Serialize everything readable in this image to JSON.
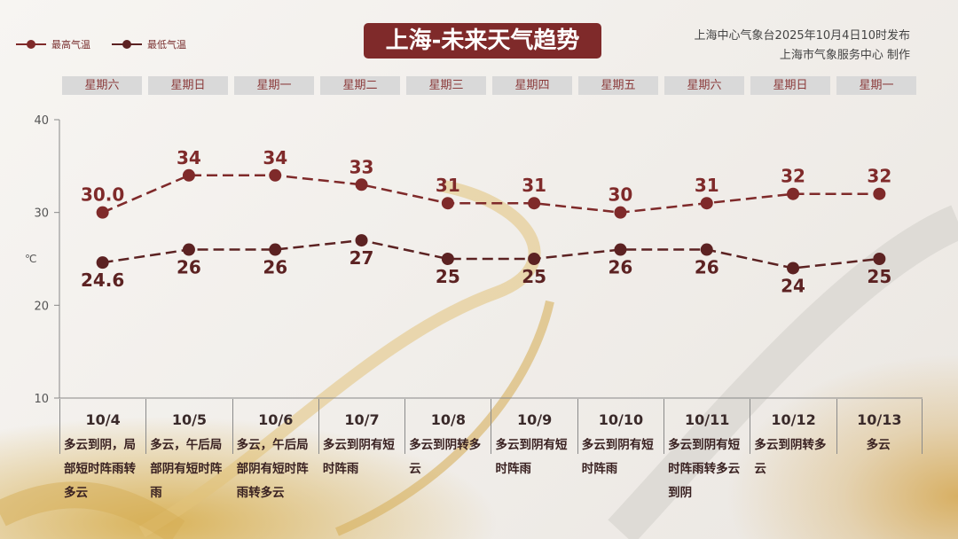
{
  "header": {
    "title": "上海-未来天气趋势",
    "publish_line1": "上海中心气象台2025年10月4日10时发布",
    "publish_line2": "上海市气象服务中心 制作"
  },
  "legend": [
    {
      "label": "最高气温",
      "color": "#7f2a2a"
    },
    {
      "label": "最低气温",
      "color": "#5c2222"
    }
  ],
  "weekdays": [
    "星期六",
    "星期日",
    "星期一",
    "星期二",
    "星期三",
    "星期四",
    "星期五",
    "星期六",
    "星期日",
    "星期一"
  ],
  "chart_data": {
    "type": "line",
    "categories": [
      "10/4",
      "10/5",
      "10/6",
      "10/7",
      "10/8",
      "10/9",
      "10/10",
      "10/11",
      "10/12",
      "10/13"
    ],
    "ylabel": "℃",
    "ylim": [
      10,
      40
    ],
    "yticks": [
      10,
      20,
      30,
      40
    ],
    "grid": false,
    "series": [
      {
        "name": "最高气温",
        "color": "#7f2a2a",
        "values": [
          30.0,
          34,
          34,
          33,
          31,
          31,
          30,
          31,
          32,
          32
        ],
        "labels": [
          "30.0",
          "34",
          "34",
          "33",
          "31",
          "31",
          "30",
          "31",
          "32",
          "32"
        ]
      },
      {
        "name": "最低气温",
        "color": "#5c2222",
        "values": [
          24.6,
          26,
          26,
          27,
          25,
          25,
          26,
          26,
          24,
          25
        ],
        "labels": [
          "24.6",
          "26",
          "26",
          "27",
          "25",
          "25",
          "26",
          "26",
          "24",
          "25"
        ]
      }
    ],
    "legend_position": "top-left"
  },
  "weather": [
    "多云到阴，局部短时阵雨转多云",
    "多云，午后局部阴有短时阵雨",
    "多云，午后局部阴有短时阵雨转多云",
    "多云到阴有短时阵雨",
    "多云到阴转多云",
    "多云到阴有短时阵雨",
    "多云到阴有短时阵雨",
    "多云到阴有短时阵雨转多云到阴",
    "多云到阴转多云",
    "多云"
  ]
}
